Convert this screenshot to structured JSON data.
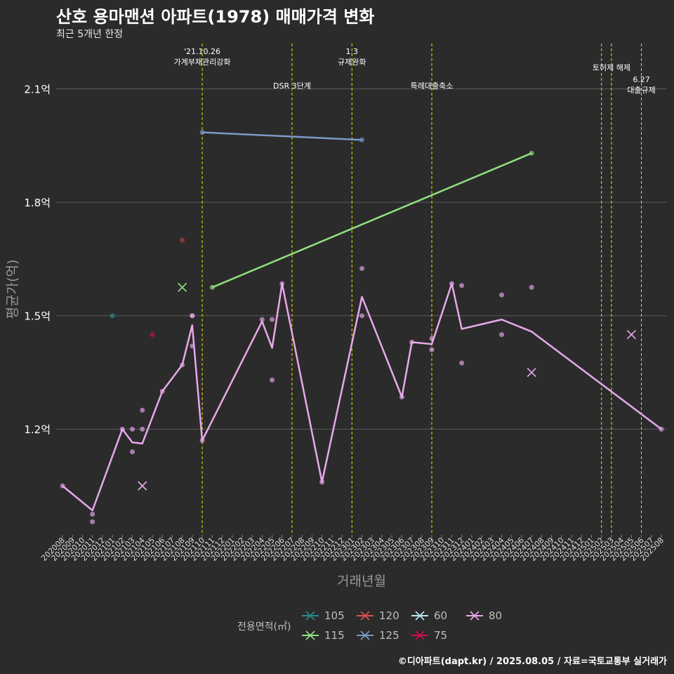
{
  "title": "산호 용마맨션 아파트(1978) 매매가격 변화",
  "subtitle": "최근 5개년 한정",
  "credit": "©디아파트(dapt.kr) / 2025.08.05 / 자료=국토교통부 실거래가",
  "colors": {
    "background": "#2b2b2b",
    "grid": "#5a5a5a",
    "event_line": "#e6e600"
  },
  "chart_data": {
    "type": "line",
    "title": "산호 용마맨션 아파트(1978) 매매가격 변화",
    "xlabel": "거래년월",
    "ylabel": "평균가(억)",
    "ylim": [
      0.92,
      2.22
    ],
    "yticks": [
      1.2,
      1.5,
      1.8,
      2.1
    ],
    "ytick_labels": [
      "1.2억",
      "1.5억",
      "1.8억",
      "2.1억"
    ],
    "categories": [
      "202008",
      "202009",
      "202010",
      "202011",
      "202012",
      "202101",
      "202102",
      "202103",
      "202104",
      "202105",
      "202106",
      "202107",
      "202108",
      "202109",
      "202110",
      "202111",
      "202112",
      "202201",
      "202202",
      "202203",
      "202204",
      "202205",
      "202206",
      "202207",
      "202208",
      "202209",
      "202210",
      "202211",
      "202212",
      "202301",
      "202302",
      "202303",
      "202304",
      "202305",
      "202306",
      "202307",
      "202308",
      "202309",
      "202310",
      "202311",
      "202312",
      "202401",
      "202402",
      "202403",
      "202404",
      "202405",
      "202406",
      "202407",
      "202408",
      "202409",
      "202410",
      "202411",
      "202412",
      "202501",
      "202502",
      "202503",
      "202504",
      "202505",
      "202506",
      "202507",
      "202508"
    ],
    "legend_title": "전용면적(㎡)",
    "series": [
      {
        "name": "80",
        "color": "#e8a8ec",
        "line": [
          [
            "202008",
            1.05
          ],
          [
            "202011",
            0.985
          ],
          [
            "202102",
            1.2
          ],
          [
            "202103",
            1.165
          ],
          [
            "202104",
            1.162
          ],
          [
            "202106",
            1.3
          ],
          [
            "202108",
            1.37
          ],
          [
            "202109",
            1.475
          ],
          [
            "202110",
            1.17
          ],
          [
            "202204",
            1.485
          ],
          [
            "202205",
            1.415
          ],
          [
            "202206",
            1.585
          ],
          [
            "202210",
            1.06
          ],
          [
            "202302",
            1.55
          ],
          [
            "202306",
            1.285
          ],
          [
            "202307",
            1.43
          ],
          [
            "202309",
            1.425
          ],
          [
            "202311",
            1.585
          ],
          [
            "202312",
            1.465
          ],
          [
            "202404",
            1.49
          ],
          [
            "202407",
            1.458
          ],
          [
            "202508",
            1.2
          ]
        ],
        "points": [
          [
            "202008",
            1.05
          ],
          [
            "202011",
            0.975
          ],
          [
            "202011",
            0.955
          ],
          [
            "202102",
            1.2
          ],
          [
            "202103",
            1.2
          ],
          [
            "202103",
            1.14
          ],
          [
            "202104",
            1.25
          ],
          [
            "202104",
            1.2
          ],
          [
            "202106",
            1.3
          ],
          [
            "202108",
            1.37
          ],
          [
            "202109",
            1.5
          ],
          [
            "202109",
            1.5
          ],
          [
            "202109",
            1.42
          ],
          [
            "202110",
            1.17
          ],
          [
            "202204",
            1.49
          ],
          [
            "202205",
            1.49
          ],
          [
            "202205",
            1.33
          ],
          [
            "202206",
            1.585
          ],
          [
            "202210",
            1.06
          ],
          [
            "202302",
            1.5
          ],
          [
            "202302",
            1.625
          ],
          [
            "202306",
            1.285
          ],
          [
            "202307",
            1.43
          ],
          [
            "202309",
            1.44
          ],
          [
            "202309",
            1.41
          ],
          [
            "202311",
            1.585
          ],
          [
            "202312",
            1.58
          ],
          [
            "202312",
            1.375
          ],
          [
            "202404",
            1.555
          ],
          [
            "202404",
            1.45
          ],
          [
            "202407",
            1.575
          ],
          [
            "202508",
            1.2
          ]
        ],
        "crosses": [
          [
            "202104",
            1.05
          ],
          [
            "202407",
            1.35
          ],
          [
            "202505",
            1.45
          ]
        ]
      },
      {
        "name": "115",
        "color": "#90e080",
        "line": [
          [
            "202111",
            1.575
          ],
          [
            "202407",
            1.93
          ]
        ],
        "points": [
          [
            "202111",
            1.575
          ],
          [
            "202407",
            1.93
          ]
        ],
        "crosses": [
          [
            "202108",
            1.575
          ]
        ]
      },
      {
        "name": "125",
        "color": "#7a9cc8",
        "line": [
          [
            "202110",
            1.985
          ],
          [
            "202302",
            1.965
          ]
        ],
        "points": [
          [
            "202110",
            1.985
          ],
          [
            "202302",
            1.965
          ]
        ],
        "crosses": []
      },
      {
        "name": "105",
        "color": "#2a8a8a",
        "line": [],
        "points": [
          [
            "202101",
            1.5
          ]
        ],
        "crosses": []
      },
      {
        "name": "120",
        "color": "#c04040",
        "line": [],
        "points": [
          [
            "202108",
            1.7
          ]
        ],
        "crosses": []
      },
      {
        "name": "75",
        "color": "#cc1050",
        "line": [],
        "points": [
          [
            "202105",
            1.45
          ]
        ],
        "crosses": []
      },
      {
        "name": "60",
        "color": "#a8e4ec",
        "line": [],
        "points": [],
        "crosses": []
      }
    ],
    "legend_entries": [
      {
        "name": "105",
        "color": "#2a8a8a"
      },
      {
        "name": "120",
        "color": "#e05050"
      },
      {
        "name": "60",
        "color": "#b8e8f0"
      },
      {
        "name": "80",
        "color": "#e8a8ec"
      },
      {
        "name": "115",
        "color": "#90e080"
      },
      {
        "name": "125",
        "color": "#7a9cc8"
      },
      {
        "name": "75",
        "color": "#cc1050"
      }
    ],
    "events": [
      {
        "at": 14.0,
        "lines": [
          "'21.10.26",
          "가계부채관리강화"
        ],
        "tier": 0
      },
      {
        "at": 23.0,
        "lines": [
          "DSR 3단계"
        ],
        "tier": 2
      },
      {
        "at": 29.0,
        "lines": [
          "1.3",
          "규제완화"
        ],
        "tier": 0
      },
      {
        "at": 37.0,
        "lines": [
          "특례대출축소"
        ],
        "tier": 2
      },
      {
        "at": 54.0,
        "lines": [],
        "tier": 0
      },
      {
        "at": 55.0,
        "lines": [
          "토허제 해제"
        ],
        "tier": 1
      },
      {
        "at": 58.0,
        "lines": [
          "6.27",
          "대출규제"
        ],
        "tier": 3
      }
    ]
  }
}
